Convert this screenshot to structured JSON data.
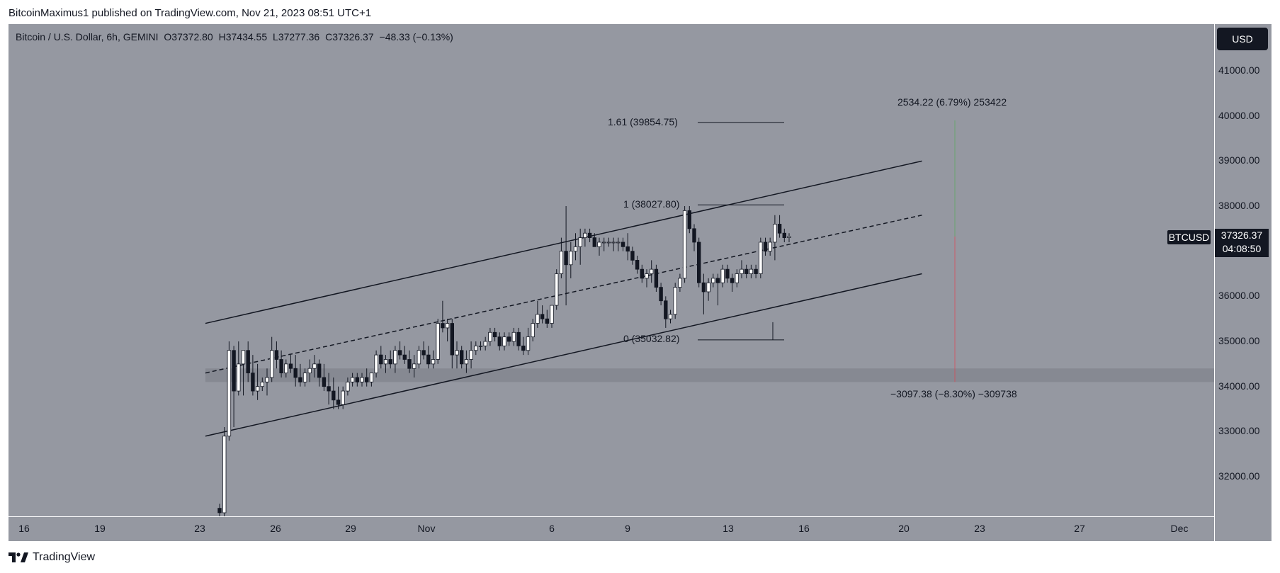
{
  "header": {
    "published": "BitcoinMaximus1 published on TradingView.com, Nov 21, 2023 08:51 UTC+1"
  },
  "legend": {
    "symbol": "Bitcoin / U.S. Dollar, 6h, GEMINI",
    "o_label": "O",
    "o": "37372.80",
    "h_label": "H",
    "h": "37434.55",
    "l_label": "L",
    "l": "37277.36",
    "c_label": "C",
    "c": "37326.37",
    "change": "−48.33 (−0.13%)"
  },
  "currency_button": "USD",
  "price_badge": {
    "symbol": "BTCUSD",
    "price": "37326.37",
    "countdown": "04:08:50"
  },
  "annotations": {
    "fib_161": "1.61 (39854.75)",
    "fib_1": "1 (38027.80)",
    "fib_0": "0 (35032.82)",
    "measure_up": "2534.22 (6.79%) 253422",
    "measure_down": "−3097.38 (−8.30%) −309738"
  },
  "footer": {
    "brand": "TradingView"
  },
  "colors": {
    "background": "#9598a1",
    "candle_up": "#ffffff",
    "candle_down": "#131722",
    "line": "#131722",
    "support_zone": "#80838c"
  },
  "chart_data": {
    "type": "candlestick",
    "title": "Bitcoin / U.S. Dollar, 6h, GEMINI",
    "y_ticks": [
      "41000.00",
      "40000.00",
      "39000.00",
      "38000.00",
      "36000.00",
      "35000.00",
      "34000.00",
      "33000.00",
      "32000.00"
    ],
    "ylim": [
      31000,
      42000
    ],
    "x_ticks": [
      "16",
      "19",
      "23",
      "26",
      "29",
      "Nov",
      "6",
      "9",
      "13",
      "16",
      "20",
      "23",
      "27",
      "Dec"
    ],
    "candles": [
      {
        "o": 31300,
        "h": 31400,
        "l": 31050,
        "c": 31200
      },
      {
        "o": 31200,
        "h": 33100,
        "l": 30900,
        "c": 32900
      },
      {
        "o": 32900,
        "h": 35000,
        "l": 32800,
        "c": 34800
      },
      {
        "o": 34800,
        "h": 34900,
        "l": 33100,
        "c": 33900
      },
      {
        "o": 33900,
        "h": 35000,
        "l": 33800,
        "c": 34500
      },
      {
        "o": 34500,
        "h": 34800,
        "l": 33800,
        "c": 34800
      },
      {
        "o": 34800,
        "h": 35000,
        "l": 34100,
        "c": 34300
      },
      {
        "o": 34300,
        "h": 34700,
        "l": 33800,
        "c": 33900
      },
      {
        "o": 33900,
        "h": 34500,
        "l": 33700,
        "c": 34000
      },
      {
        "o": 34000,
        "h": 34200,
        "l": 33900,
        "c": 34100
      },
      {
        "o": 34100,
        "h": 34400,
        "l": 33800,
        "c": 34200
      },
      {
        "o": 34200,
        "h": 35100,
        "l": 34100,
        "c": 34800
      },
      {
        "o": 34800,
        "h": 35000,
        "l": 34400,
        "c": 34600
      },
      {
        "o": 34600,
        "h": 34800,
        "l": 34200,
        "c": 34300
      },
      {
        "o": 34300,
        "h": 34600,
        "l": 34200,
        "c": 34500
      },
      {
        "o": 34500,
        "h": 34700,
        "l": 34300,
        "c": 34400
      },
      {
        "o": 34400,
        "h": 34700,
        "l": 34000,
        "c": 34200
      },
      {
        "o": 34200,
        "h": 34500,
        "l": 34000,
        "c": 34100
      },
      {
        "o": 34100,
        "h": 34400,
        "l": 34000,
        "c": 34300
      },
      {
        "o": 34300,
        "h": 34600,
        "l": 34100,
        "c": 34400
      },
      {
        "o": 34400,
        "h": 34700,
        "l": 34200,
        "c": 34500
      },
      {
        "o": 34500,
        "h": 34600,
        "l": 34000,
        "c": 34200
      },
      {
        "o": 34200,
        "h": 34500,
        "l": 33900,
        "c": 34000
      },
      {
        "o": 34000,
        "h": 34300,
        "l": 33600,
        "c": 33900
      },
      {
        "o": 33900,
        "h": 34200,
        "l": 33500,
        "c": 33700
      },
      {
        "o": 33700,
        "h": 34000,
        "l": 33500,
        "c": 33600
      },
      {
        "o": 33600,
        "h": 34000,
        "l": 33500,
        "c": 33900
      },
      {
        "o": 33900,
        "h": 34200,
        "l": 33800,
        "c": 34100
      },
      {
        "o": 34100,
        "h": 34300,
        "l": 34000,
        "c": 34200
      },
      {
        "o": 34200,
        "h": 34300,
        "l": 34000,
        "c": 34100
      },
      {
        "o": 34100,
        "h": 34300,
        "l": 34000,
        "c": 34200
      },
      {
        "o": 34200,
        "h": 34400,
        "l": 34000,
        "c": 34100
      },
      {
        "o": 34100,
        "h": 34300,
        "l": 34000,
        "c": 34300
      },
      {
        "o": 34300,
        "h": 34800,
        "l": 34200,
        "c": 34700
      },
      {
        "o": 34700,
        "h": 34900,
        "l": 34400,
        "c": 34500
      },
      {
        "o": 34500,
        "h": 34700,
        "l": 34300,
        "c": 34600
      },
      {
        "o": 34600,
        "h": 34800,
        "l": 34400,
        "c": 34500
      },
      {
        "o": 34500,
        "h": 34900,
        "l": 34300,
        "c": 34800
      },
      {
        "o": 34800,
        "h": 35000,
        "l": 34600,
        "c": 34700
      },
      {
        "o": 34700,
        "h": 34900,
        "l": 34500,
        "c": 34600
      },
      {
        "o": 34600,
        "h": 34800,
        "l": 34300,
        "c": 34400
      },
      {
        "o": 34400,
        "h": 34700,
        "l": 34200,
        "c": 34500
      },
      {
        "o": 34500,
        "h": 34900,
        "l": 34400,
        "c": 34800
      },
      {
        "o": 34800,
        "h": 35000,
        "l": 34600,
        "c": 34700
      },
      {
        "o": 34700,
        "h": 34900,
        "l": 34400,
        "c": 34500
      },
      {
        "o": 34500,
        "h": 34800,
        "l": 34400,
        "c": 34600
      },
      {
        "o": 34600,
        "h": 35500,
        "l": 34500,
        "c": 35400
      },
      {
        "o": 35400,
        "h": 35900,
        "l": 35200,
        "c": 35300
      },
      {
        "o": 35300,
        "h": 35500,
        "l": 35000,
        "c": 35400
      },
      {
        "o": 35400,
        "h": 35500,
        "l": 34400,
        "c": 34700
      },
      {
        "o": 34700,
        "h": 35000,
        "l": 34400,
        "c": 34800
      },
      {
        "o": 34800,
        "h": 34900,
        "l": 34400,
        "c": 34500
      },
      {
        "o": 34500,
        "h": 34800,
        "l": 34300,
        "c": 34600
      },
      {
        "o": 34600,
        "h": 35000,
        "l": 34400,
        "c": 34800
      },
      {
        "o": 34800,
        "h": 35000,
        "l": 34700,
        "c": 34900
      },
      {
        "o": 34900,
        "h": 35000,
        "l": 34800,
        "c": 34900
      },
      {
        "o": 34900,
        "h": 35100,
        "l": 34800,
        "c": 35000
      },
      {
        "o": 35000,
        "h": 35300,
        "l": 34900,
        "c": 35200
      },
      {
        "o": 35200,
        "h": 35300,
        "l": 35000,
        "c": 35100
      },
      {
        "o": 35100,
        "h": 35200,
        "l": 34800,
        "c": 34900
      },
      {
        "o": 34900,
        "h": 35200,
        "l": 34800,
        "c": 35100
      },
      {
        "o": 35100,
        "h": 35200,
        "l": 34900,
        "c": 35000
      },
      {
        "o": 35000,
        "h": 35300,
        "l": 34900,
        "c": 35200
      },
      {
        "o": 35200,
        "h": 35300,
        "l": 34800,
        "c": 34900
      },
      {
        "o": 34900,
        "h": 35100,
        "l": 34700,
        "c": 34800
      },
      {
        "o": 34800,
        "h": 35300,
        "l": 34700,
        "c": 35100
      },
      {
        "o": 35100,
        "h": 35500,
        "l": 35000,
        "c": 35400
      },
      {
        "o": 35400,
        "h": 35900,
        "l": 35300,
        "c": 35600
      },
      {
        "o": 35600,
        "h": 35800,
        "l": 35400,
        "c": 35500
      },
      {
        "o": 35500,
        "h": 35700,
        "l": 35300,
        "c": 35400
      },
      {
        "o": 35400,
        "h": 35800,
        "l": 35300,
        "c": 35800
      },
      {
        "o": 35800,
        "h": 36600,
        "l": 35700,
        "c": 36500
      },
      {
        "o": 36500,
        "h": 37300,
        "l": 36400,
        "c": 37000
      },
      {
        "o": 37000,
        "h": 38000,
        "l": 35800,
        "c": 36700
      },
      {
        "o": 36700,
        "h": 37200,
        "l": 36400,
        "c": 37000
      },
      {
        "o": 37000,
        "h": 37400,
        "l": 36800,
        "c": 37100
      },
      {
        "o": 37100,
        "h": 37500,
        "l": 36700,
        "c": 37300
      },
      {
        "o": 37300,
        "h": 37500,
        "l": 37100,
        "c": 37400
      },
      {
        "o": 37400,
        "h": 37500,
        "l": 37200,
        "c": 37300
      },
      {
        "o": 37300,
        "h": 37400,
        "l": 37100,
        "c": 37100
      },
      {
        "o": 37100,
        "h": 37300,
        "l": 36900,
        "c": 37200
      },
      {
        "o": 37200,
        "h": 37300,
        "l": 37000,
        "c": 37200
      },
      {
        "o": 37200,
        "h": 37300,
        "l": 37100,
        "c": 37200
      },
      {
        "o": 37200,
        "h": 37300,
        "l": 37000,
        "c": 37200
      },
      {
        "o": 37200,
        "h": 37300,
        "l": 37000,
        "c": 37200
      },
      {
        "o": 37200,
        "h": 37300,
        "l": 37000,
        "c": 37100
      },
      {
        "o": 37100,
        "h": 37400,
        "l": 36800,
        "c": 37000
      },
      {
        "o": 37000,
        "h": 37100,
        "l": 36700,
        "c": 36800
      },
      {
        "o": 36800,
        "h": 36900,
        "l": 36500,
        "c": 36600
      },
      {
        "o": 36600,
        "h": 36700,
        "l": 36300,
        "c": 36400
      },
      {
        "o": 36400,
        "h": 36600,
        "l": 36200,
        "c": 36500
      },
      {
        "o": 36500,
        "h": 36800,
        "l": 36300,
        "c": 36600
      },
      {
        "o": 36600,
        "h": 36700,
        "l": 36100,
        "c": 36200
      },
      {
        "o": 36200,
        "h": 36300,
        "l": 35800,
        "c": 35900
      },
      {
        "o": 35900,
        "h": 36000,
        "l": 35300,
        "c": 35500
      },
      {
        "o": 35500,
        "h": 35700,
        "l": 35400,
        "c": 35600
      },
      {
        "o": 35600,
        "h": 36300,
        "l": 35500,
        "c": 36200
      },
      {
        "o": 36200,
        "h": 36500,
        "l": 36100,
        "c": 36400
      },
      {
        "o": 36400,
        "h": 38000,
        "l": 36300,
        "c": 37900
      },
      {
        "o": 37900,
        "h": 38000,
        "l": 37400,
        "c": 37500
      },
      {
        "o": 37500,
        "h": 37600,
        "l": 37000,
        "c": 37200
      },
      {
        "o": 37200,
        "h": 37300,
        "l": 36200,
        "c": 36300
      },
      {
        "o": 36300,
        "h": 36500,
        "l": 35600,
        "c": 36100
      },
      {
        "o": 36100,
        "h": 36400,
        "l": 35900,
        "c": 36300
      },
      {
        "o": 36300,
        "h": 36500,
        "l": 36200,
        "c": 36400
      },
      {
        "o": 36400,
        "h": 36500,
        "l": 35800,
        "c": 36300
      },
      {
        "o": 36300,
        "h": 36700,
        "l": 36200,
        "c": 36600
      },
      {
        "o": 36600,
        "h": 36700,
        "l": 36300,
        "c": 36400
      },
      {
        "o": 36400,
        "h": 36500,
        "l": 36100,
        "c": 36300
      },
      {
        "o": 36300,
        "h": 36600,
        "l": 36200,
        "c": 36500
      },
      {
        "o": 36500,
        "h": 36800,
        "l": 36400,
        "c": 36600
      },
      {
        "o": 36600,
        "h": 36700,
        "l": 36400,
        "c": 36500
      },
      {
        "o": 36500,
        "h": 36700,
        "l": 36400,
        "c": 36600
      },
      {
        "o": 36600,
        "h": 36700,
        "l": 36400,
        "c": 36500
      },
      {
        "o": 36500,
        "h": 37300,
        "l": 36400,
        "c": 37200
      },
      {
        "o": 37200,
        "h": 37300,
        "l": 36900,
        "c": 37000
      },
      {
        "o": 37000,
        "h": 37300,
        "l": 36900,
        "c": 37200
      },
      {
        "o": 37200,
        "h": 37800,
        "l": 36800,
        "c": 37600
      },
      {
        "o": 37600,
        "h": 37800,
        "l": 37300,
        "c": 37400
      },
      {
        "o": 37400,
        "h": 37500,
        "l": 37200,
        "c": 37300
      },
      {
        "o": 37300,
        "h": 37400,
        "l": 37200,
        "c": 37326
      }
    ],
    "channel": {
      "upper": {
        "from": {
          "bar": 0,
          "price": 35400
        },
        "to": {
          "bar": 145,
          "price": 39000
        }
      },
      "middle": {
        "from": {
          "bar": 0,
          "price": 34300
        },
        "to": {
          "bar": 145,
          "price": 37800
        }
      },
      "lower": {
        "from": {
          "bar": 0,
          "price": 32900
        },
        "to": {
          "bar": 145,
          "price": 36500
        }
      }
    },
    "support_zone": [
      34100,
      34400
    ],
    "fib_levels": [
      {
        "label": "1.61 (39854.75)",
        "price": 39854.75
      },
      {
        "label": "1 (38027.80)",
        "price": 38027.8
      },
      {
        "label": "0 (35032.82)",
        "price": 35032.82
      }
    ],
    "last_price": 37326.37
  }
}
